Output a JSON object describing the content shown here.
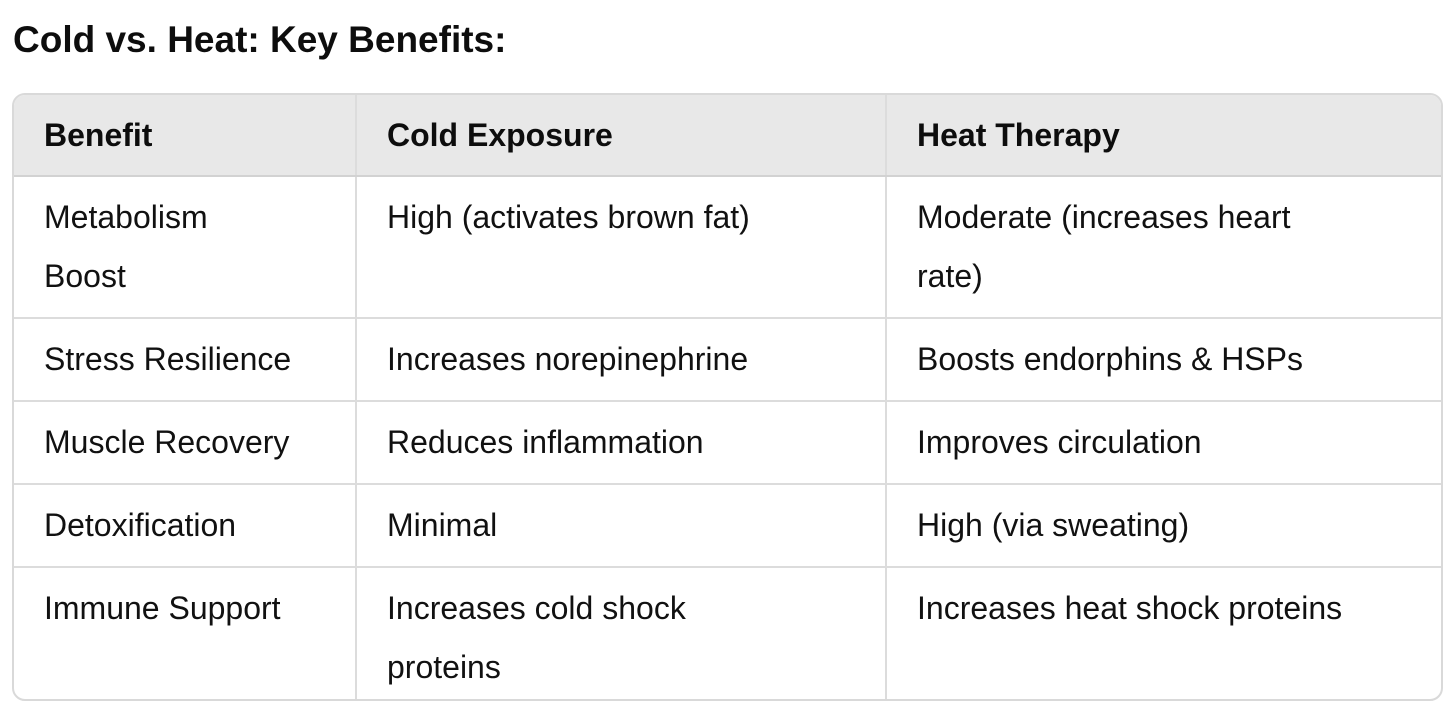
{
  "title": "Cold vs. Heat: Key Benefits:",
  "table": {
    "headers": [
      "Benefit",
      "Cold Exposure",
      "Heat Therapy"
    ],
    "rows": [
      [
        "Metabolism Boost",
        "High (activates brown fat)",
        "Moderate (increases heart rate)"
      ],
      [
        "Stress Resilience",
        "Increases norepinephrine",
        "Boosts endorphins & HSPs"
      ],
      [
        "Muscle Recovery",
        "Reduces inflammation",
        "Improves circulation"
      ],
      [
        "Detoxification",
        "Minimal",
        "High (via sweating)"
      ],
      [
        "Immune Support",
        "Increases cold shock proteins",
        "Increases heat shock proteins"
      ]
    ]
  }
}
